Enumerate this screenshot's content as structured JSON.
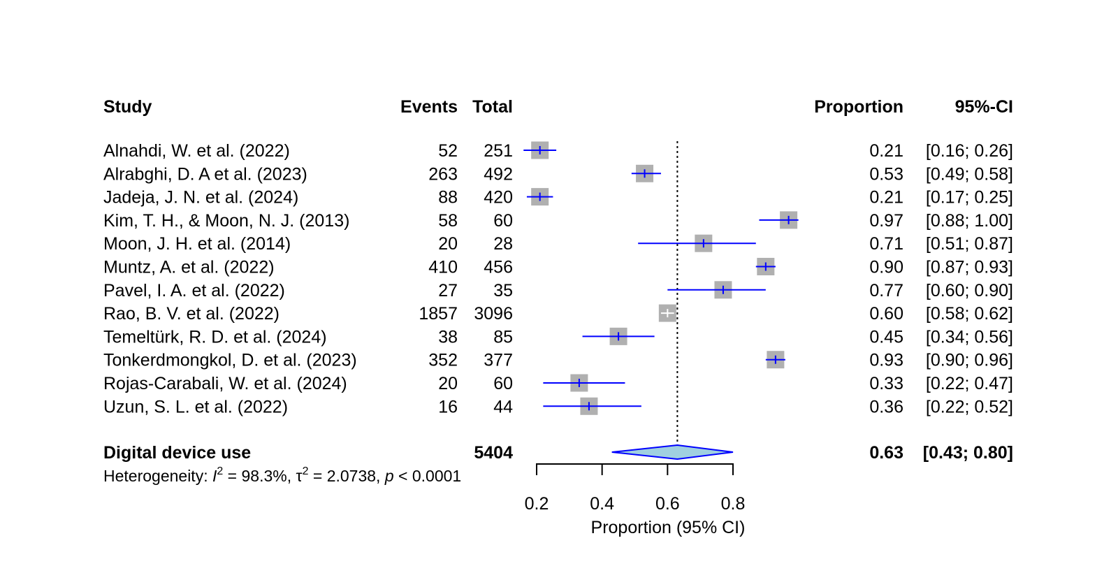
{
  "chart_data": {
    "type": "forest",
    "columns": {
      "study": "Study",
      "events": "Events",
      "total": "Total",
      "proportion": "Proportion",
      "ci": "95%-CI"
    },
    "studies": [
      {
        "study": "Alnahdi, W. et al. (2022)",
        "events": "52",
        "total": "251",
        "proportion": 0.21,
        "lower": 0.16,
        "upper": 0.26,
        "prop_label": "0.21",
        "ci_label": "[0.16; 0.26]"
      },
      {
        "study": "Alrabghi, D. A et al. (2023)",
        "events": "263",
        "total": "492",
        "proportion": 0.53,
        "lower": 0.49,
        "upper": 0.58,
        "prop_label": "0.53",
        "ci_label": "[0.49; 0.58]"
      },
      {
        "study": "Jadeja, J. N. et al. (2024)",
        "events": "88",
        "total": "420",
        "proportion": 0.21,
        "lower": 0.17,
        "upper": 0.25,
        "prop_label": "0.21",
        "ci_label": "[0.17; 0.25]"
      },
      {
        "study": "Kim, T. H., & Moon, N. J. (2013)",
        "events": "58",
        "total": "60",
        "proportion": 0.97,
        "lower": 0.88,
        "upper": 1.0,
        "prop_label": "0.97",
        "ci_label": "[0.88; 1.00]"
      },
      {
        "study": "Moon, J. H. et al. (2014)",
        "events": "20",
        "total": "28",
        "proportion": 0.71,
        "lower": 0.51,
        "upper": 0.87,
        "prop_label": "0.71",
        "ci_label": "[0.51; 0.87]"
      },
      {
        "study": "Muntz, A. et al. (2022)",
        "events": "410",
        "total": "456",
        "proportion": 0.9,
        "lower": 0.87,
        "upper": 0.93,
        "prop_label": "0.90",
        "ci_label": "[0.87; 0.93]"
      },
      {
        "study": "Pavel, I. A. et al. (2022)",
        "events": "27",
        "total": "35",
        "proportion": 0.77,
        "lower": 0.6,
        "upper": 0.9,
        "prop_label": "0.77",
        "ci_label": "[0.60; 0.90]"
      },
      {
        "study": "Rao, B. V. et al. (2022)",
        "events": "1857",
        "total": "3096",
        "proportion": 0.6,
        "lower": 0.58,
        "upper": 0.62,
        "prop_label": "0.60",
        "ci_label": "[0.58; 0.62]"
      },
      {
        "study": "Temeltürk, R. D. et al. (2024)",
        "events": "38",
        "total": "85",
        "proportion": 0.45,
        "lower": 0.34,
        "upper": 0.56,
        "prop_label": "0.45",
        "ci_label": "[0.34; 0.56]"
      },
      {
        "study": "Tonkerdmongkol, D. et al. (2023)",
        "events": "352",
        "total": "377",
        "proportion": 0.93,
        "lower": 0.9,
        "upper": 0.96,
        "prop_label": "0.93",
        "ci_label": "[0.90; 0.96]"
      },
      {
        "study": "Rojas-Carabali, W. et al. (2024)",
        "events": "20",
        "total": "60",
        "proportion": 0.33,
        "lower": 0.22,
        "upper": 0.47,
        "prop_label": "0.33",
        "ci_label": "[0.22; 0.47]"
      },
      {
        "study": "Uzun, S. L. et al. (2022)",
        "events": "16",
        "total": "44",
        "proportion": 0.36,
        "lower": 0.22,
        "upper": 0.52,
        "prop_label": "0.36",
        "ci_label": "[0.22; 0.52]"
      }
    ],
    "summary": {
      "label": "Digital device use",
      "total": "5404",
      "proportion": 0.63,
      "lower": 0.43,
      "upper": 0.8,
      "prop_label": "0.63",
      "ci_label": "[0.43; 0.80]"
    },
    "heterogeneity": {
      "prefix": "Heterogeneity: ",
      "i2_symbol": "I",
      "i2_value": " = 98.3%, ",
      "tau2_symbol": "τ",
      "tau2_value": " = 2.0738, ",
      "p_symbol": "p",
      "p_value": " < 0.0001",
      "superscript": "2"
    },
    "xaxis": {
      "label": "Proportion (95% CI)",
      "ticks": [
        0.2,
        0.4,
        0.6,
        0.8
      ],
      "tick_labels": [
        "0.2",
        "0.4",
        "0.6",
        "0.8"
      ],
      "range": [
        0.2,
        0.8
      ]
    },
    "reference_line": 0.63,
    "colors": {
      "square": "#b0b0b0",
      "ci_line": "#0000ff",
      "ci_line_inside": "#ffffff",
      "diamond_fill": "#a0d0e0",
      "diamond_stroke": "#0000ff",
      "axis": "#000000"
    }
  }
}
